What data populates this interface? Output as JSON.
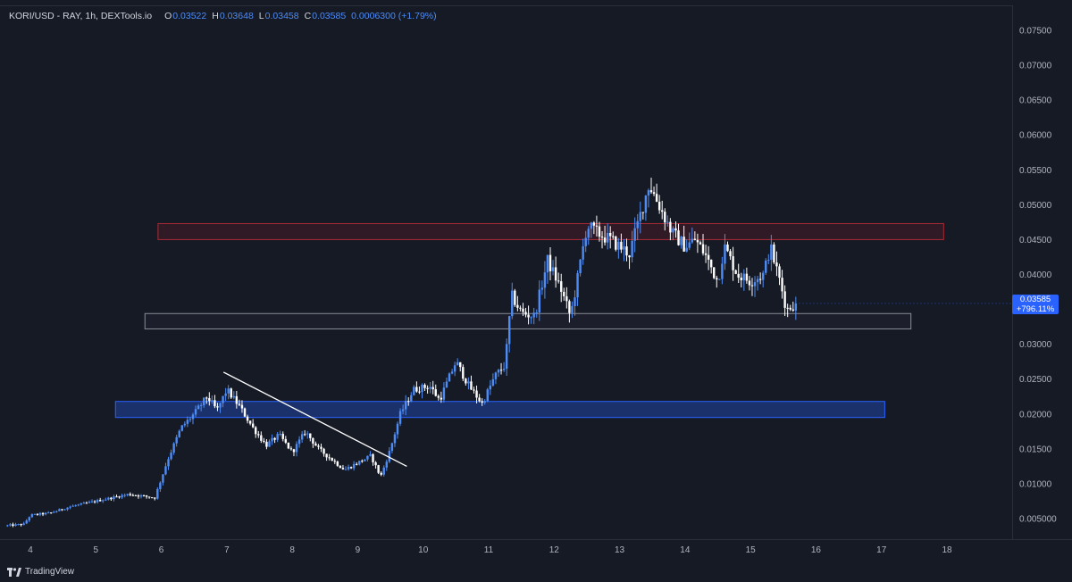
{
  "legend": {
    "symbol": "KORI/USD - RAY, 1h, DEXTools.io",
    "o_label": "O",
    "o": "0.03522",
    "h_label": "H",
    "h": "0.03648",
    "l_label": "L",
    "l": "0.03458",
    "c_label": "C",
    "c": "0.03585",
    "change": "0.0006300 (+1.79%)"
  },
  "price_tag": {
    "price": "0.03585",
    "change_pct": "+796.11%"
  },
  "footer": {
    "brand": "TradingView"
  },
  "colors": {
    "background": "#161a25",
    "up_candle": "#4d8cf5",
    "down_candle": "#ffffff",
    "resistance_zone": "#a82a35",
    "neutral_zone": "#8a8d95",
    "support_zone": "#2962ff",
    "trendline": "#ffffff"
  },
  "chart_data": {
    "type": "candlestick",
    "title": "KORI/USD - RAY, 1h, DEXTools.io",
    "x_ticks": [
      "4",
      "5",
      "6",
      "7",
      "8",
      "9",
      "10",
      "11",
      "12",
      "13",
      "14",
      "15",
      "16",
      "17",
      "18"
    ],
    "x_range": [
      3.65,
      18.4
    ],
    "y_ticks": [
      "0.07500",
      "0.07000",
      "0.06500",
      "0.06000",
      "0.05500",
      "0.05000",
      "0.04500",
      "0.04000",
      "0.03500",
      "0.03000",
      "0.02500",
      "0.02000",
      "0.01500",
      "0.01000",
      "0.005000"
    ],
    "y_range": [
      0.0,
      0.0775
    ],
    "anchors": [
      [
        3.65,
        0.004
      ],
      [
        3.9,
        0.0042
      ],
      [
        4.0,
        0.0055
      ],
      [
        4.3,
        0.0058
      ],
      [
        4.6,
        0.0067
      ],
      [
        5.0,
        0.0075
      ],
      [
        5.5,
        0.0085
      ],
      [
        5.9,
        0.008
      ],
      [
        6.1,
        0.0135
      ],
      [
        6.3,
        0.018
      ],
      [
        6.5,
        0.02
      ],
      [
        6.7,
        0.0225
      ],
      [
        6.85,
        0.0205
      ],
      [
        7.0,
        0.0235
      ],
      [
        7.2,
        0.021
      ],
      [
        7.4,
        0.018
      ],
      [
        7.6,
        0.0155
      ],
      [
        7.8,
        0.017
      ],
      [
        8.0,
        0.0145
      ],
      [
        8.2,
        0.0175
      ],
      [
        8.4,
        0.015
      ],
      [
        8.6,
        0.0135
      ],
      [
        8.8,
        0.012
      ],
      [
        9.0,
        0.013
      ],
      [
        9.2,
        0.014
      ],
      [
        9.35,
        0.011
      ],
      [
        9.5,
        0.015
      ],
      [
        9.65,
        0.02
      ],
      [
        9.85,
        0.0235
      ],
      [
        10.1,
        0.024
      ],
      [
        10.25,
        0.022
      ],
      [
        10.5,
        0.0275
      ],
      [
        10.7,
        0.024
      ],
      [
        10.9,
        0.0215
      ],
      [
        11.1,
        0.0255
      ],
      [
        11.25,
        0.027
      ],
      [
        11.35,
        0.037
      ],
      [
        11.5,
        0.0345
      ],
      [
        11.7,
        0.034
      ],
      [
        11.9,
        0.042
      ],
      [
        12.1,
        0.038
      ],
      [
        12.25,
        0.034
      ],
      [
        12.35,
        0.039
      ],
      [
        12.5,
        0.047
      ],
      [
        12.65,
        0.046
      ],
      [
        12.85,
        0.045
      ],
      [
        13.0,
        0.044
      ],
      [
        13.15,
        0.043
      ],
      [
        13.3,
        0.048
      ],
      [
        13.45,
        0.053
      ],
      [
        13.6,
        0.05
      ],
      [
        13.8,
        0.046
      ],
      [
        14.0,
        0.044
      ],
      [
        14.15,
        0.045
      ],
      [
        14.3,
        0.043
      ],
      [
        14.5,
        0.039
      ],
      [
        14.6,
        0.044
      ],
      [
        14.8,
        0.04
      ],
      [
        15.0,
        0.039
      ],
      [
        15.2,
        0.04
      ],
      [
        15.3,
        0.044
      ],
      [
        15.45,
        0.039
      ],
      [
        15.55,
        0.035
      ],
      [
        15.7,
        0.03585
      ]
    ],
    "zones": [
      {
        "name": "resistance",
        "x_start": 5.95,
        "x_end": 17.95,
        "y_low": 0.045,
        "y_high": 0.0473
      },
      {
        "name": "neutral",
        "x_start": 5.75,
        "x_end": 17.45,
        "y_low": 0.0322,
        "y_high": 0.0344
      },
      {
        "name": "support",
        "x_start": 5.3,
        "x_end": 17.05,
        "y_low": 0.0195,
        "y_high": 0.0218
      }
    ],
    "trendline": {
      "x1": 6.95,
      "y1": 0.026,
      "x2": 9.75,
      "y2": 0.0125
    },
    "last_price": 0.03585
  }
}
